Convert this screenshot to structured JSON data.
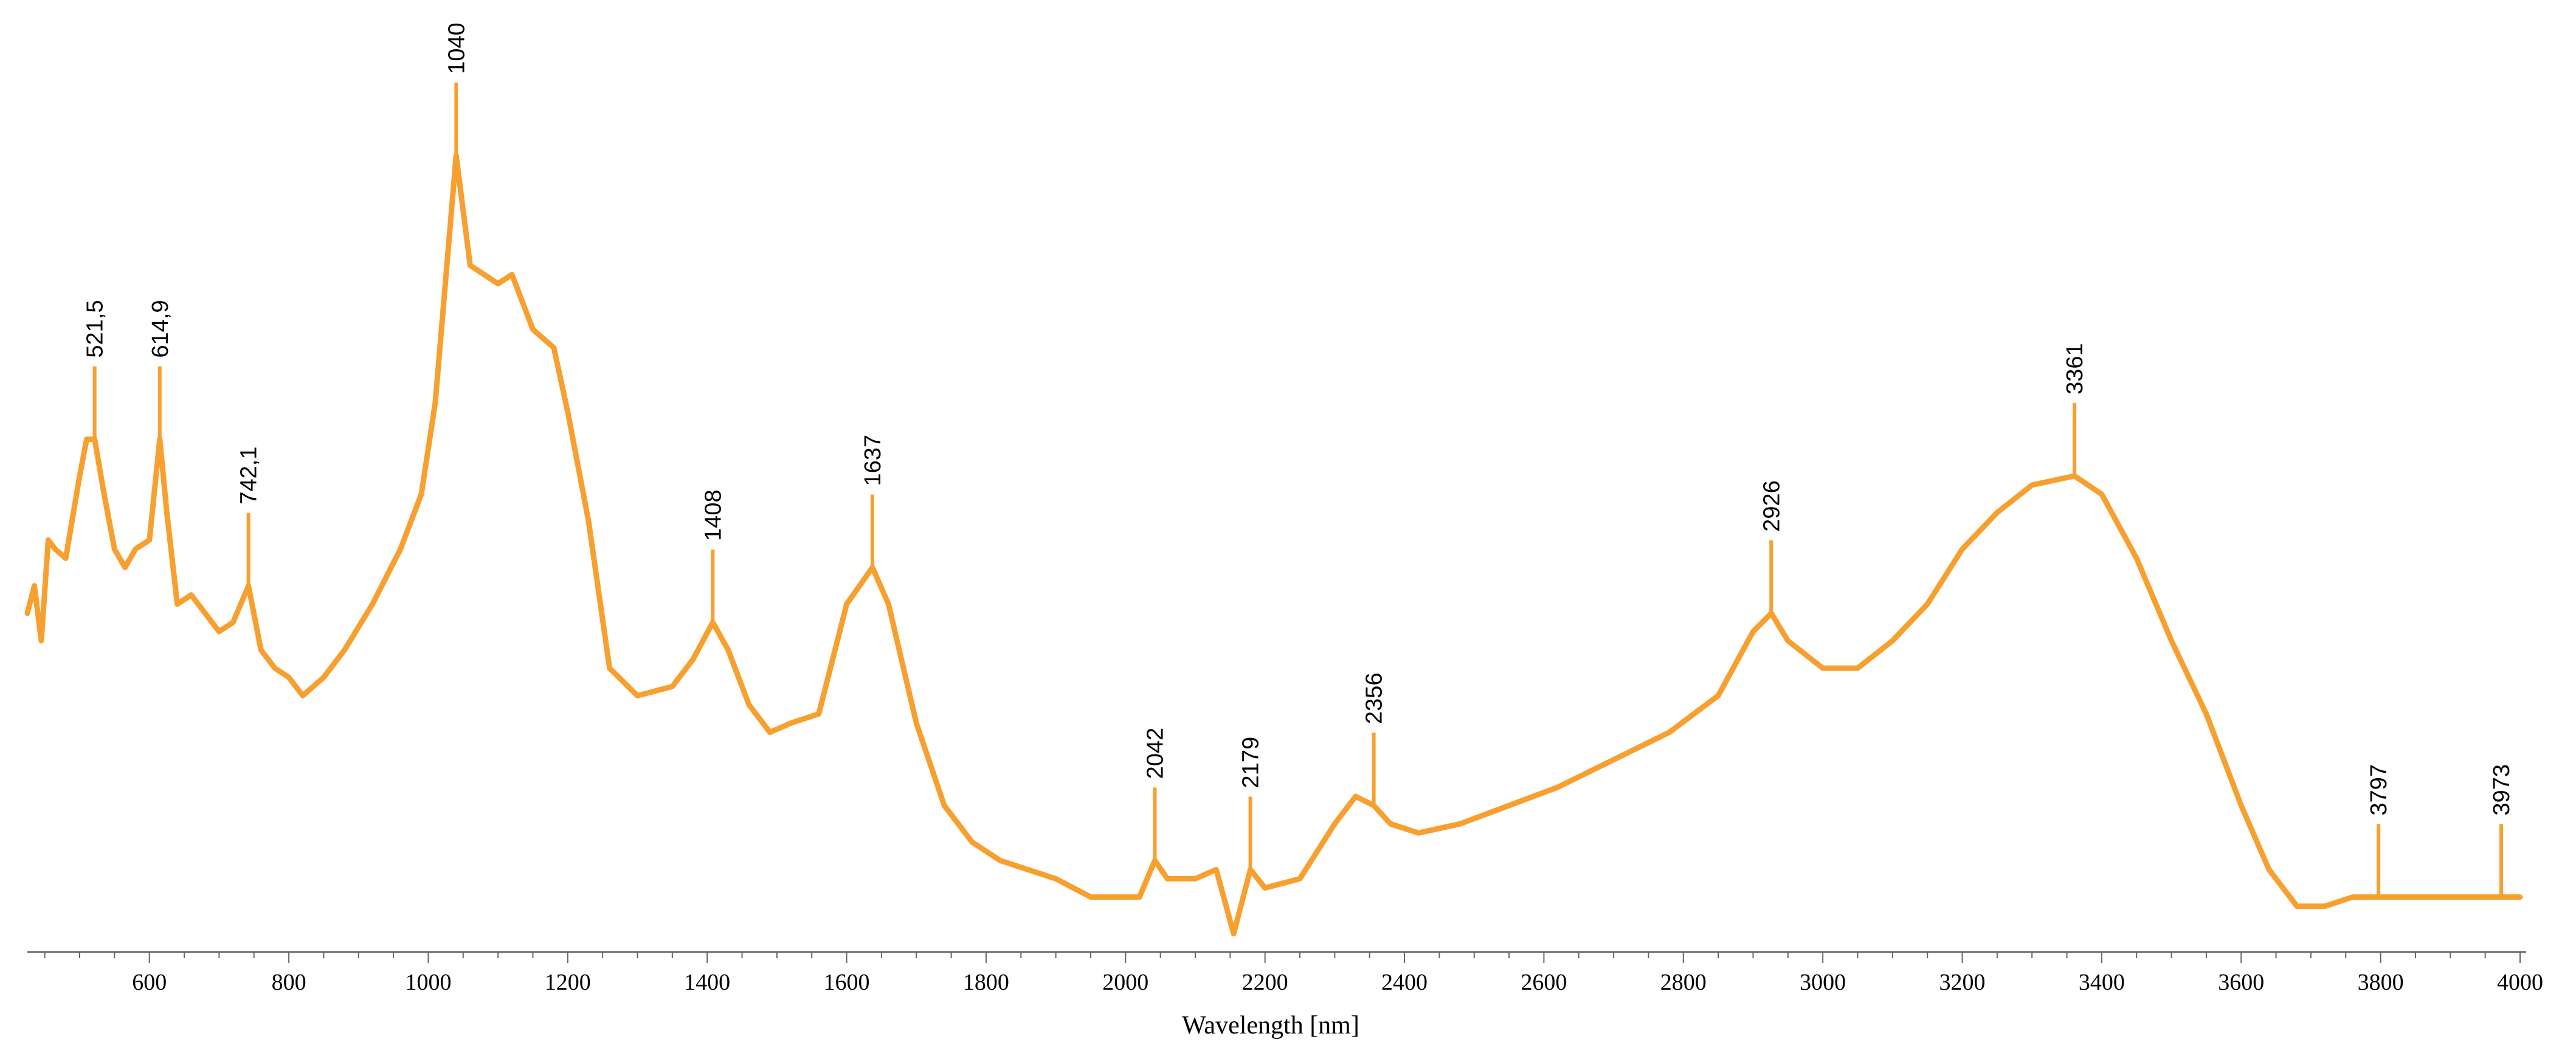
{
  "chart_data": {
    "type": "line",
    "xlabel": "Wavelength [nm]",
    "ylabel": "",
    "xlim": [
      425,
      4000
    ],
    "ylim": [
      0,
      1
    ],
    "x_ticks": [
      600,
      800,
      1000,
      1200,
      1400,
      1600,
      1800,
      2000,
      2200,
      2400,
      2600,
      2800,
      3000,
      3200,
      3400,
      3600,
      3800,
      4000
    ],
    "y_axis_visible": false,
    "grid": false,
    "line_color": "#F7A030",
    "series": [
      {
        "x": [
          425,
          435,
          445,
          455,
          465,
          480,
          500,
          510,
          521.5,
          535,
          550,
          565,
          580,
          600,
          614.9,
          625,
          640,
          660,
          680,
          700,
          720,
          742.1,
          760,
          780,
          800,
          820,
          850,
          880,
          920,
          960,
          990,
          1010,
          1040,
          1060,
          1080,
          1100,
          1120,
          1150,
          1180,
          1200,
          1230,
          1260,
          1300,
          1350,
          1380,
          1408,
          1430,
          1460,
          1490,
          1520,
          1560,
          1600,
          1637,
          1660,
          1700,
          1740,
          1780,
          1820,
          1860,
          1900,
          1950,
          2000,
          2020,
          2042,
          2060,
          2100,
          2130,
          2155,
          2179,
          2200,
          2250,
          2300,
          2330,
          2356,
          2380,
          2420,
          2480,
          2550,
          2620,
          2700,
          2780,
          2850,
          2900,
          2926,
          2950,
          3000,
          3050,
          3100,
          3150,
          3200,
          3250,
          3300,
          3361,
          3400,
          3450,
          3500,
          3550,
          3600,
          3640,
          3680,
          3720,
          3760,
          3797,
          3850,
          3900,
          3950,
          3973,
          4000
        ],
        "values": [
          0.37,
          0.4,
          0.34,
          0.45,
          0.44,
          0.43,
          0.52,
          0.56,
          0.56,
          0.5,
          0.44,
          0.42,
          0.44,
          0.45,
          0.56,
          0.48,
          0.38,
          0.39,
          0.37,
          0.35,
          0.36,
          0.4,
          0.33,
          0.31,
          0.3,
          0.28,
          0.3,
          0.33,
          0.38,
          0.44,
          0.5,
          0.6,
          0.87,
          0.75,
          0.74,
          0.73,
          0.74,
          0.68,
          0.66,
          0.59,
          0.47,
          0.31,
          0.28,
          0.29,
          0.32,
          0.36,
          0.33,
          0.27,
          0.24,
          0.25,
          0.26,
          0.38,
          0.42,
          0.38,
          0.25,
          0.16,
          0.12,
          0.1,
          0.09,
          0.08,
          0.06,
          0.06,
          0.06,
          0.1,
          0.08,
          0.08,
          0.09,
          0.02,
          0.09,
          0.07,
          0.08,
          0.14,
          0.17,
          0.16,
          0.14,
          0.13,
          0.14,
          0.16,
          0.18,
          0.21,
          0.24,
          0.28,
          0.35,
          0.37,
          0.34,
          0.31,
          0.31,
          0.34,
          0.38,
          0.44,
          0.48,
          0.51,
          0.52,
          0.5,
          0.43,
          0.34,
          0.26,
          0.16,
          0.09,
          0.05,
          0.05,
          0.06,
          0.06,
          0.06,
          0.06,
          0.06,
          0.06,
          0.06
        ]
      }
    ],
    "peak_labels": [
      {
        "x": 521.5,
        "text": "521,5"
      },
      {
        "x": 614.9,
        "text": "614,9"
      },
      {
        "x": 742.1,
        "text": "742,1"
      },
      {
        "x": 1040,
        "text": "1040"
      },
      {
        "x": 1408,
        "text": "1408"
      },
      {
        "x": 1637,
        "text": "1637"
      },
      {
        "x": 2042,
        "text": "2042"
      },
      {
        "x": 2179,
        "text": "2179"
      },
      {
        "x": 2356,
        "text": "2356"
      },
      {
        "x": 2926,
        "text": "2926"
      },
      {
        "x": 3361,
        "text": "3361"
      },
      {
        "x": 3797,
        "text": "3797"
      },
      {
        "x": 3973,
        "text": "3973"
      }
    ]
  }
}
